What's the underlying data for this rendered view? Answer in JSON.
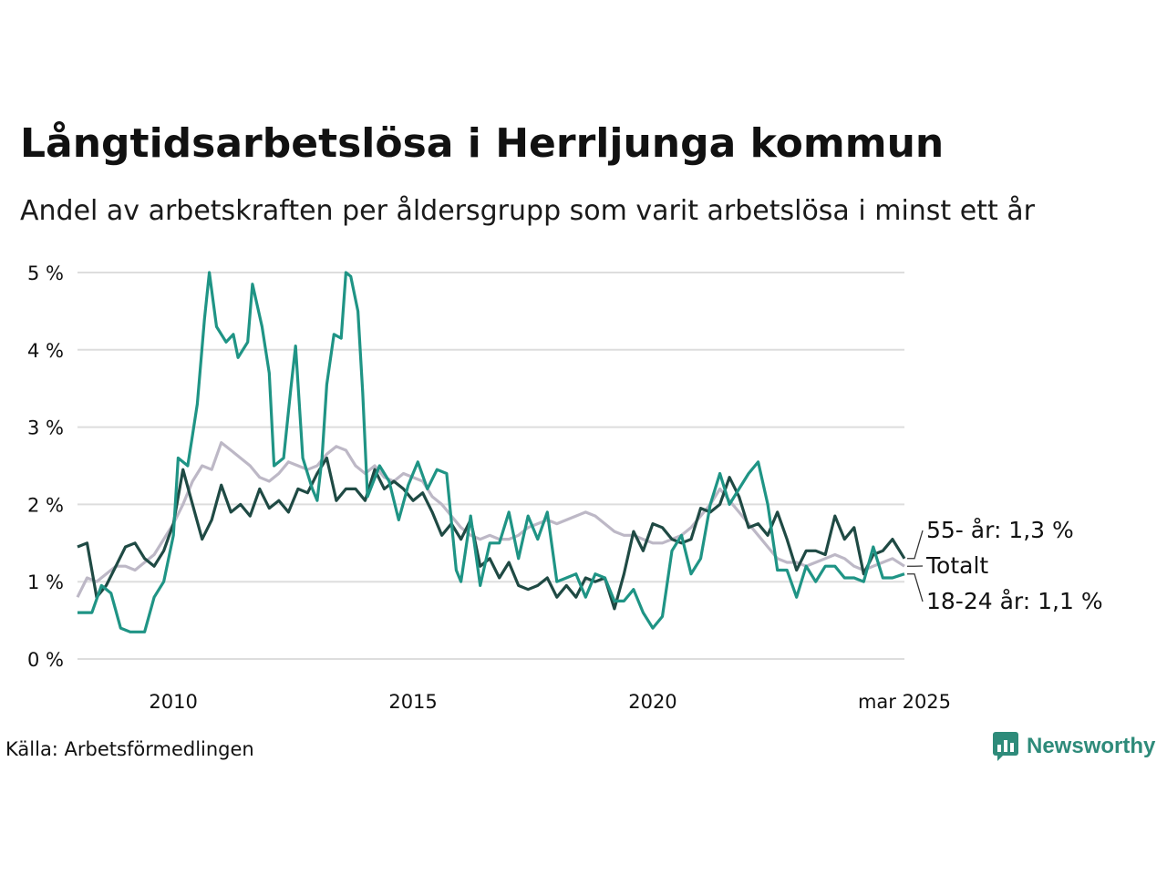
{
  "title": "Långtidsarbetslösa i Herrljunga kommun",
  "subtitle": "Andel av arbetskraften per åldersgrupp som varit arbetslösa i minst ett år",
  "source": "Källa: Arbetsförmedlingen",
  "brand": "Newsworthy",
  "chart_data": {
    "type": "line",
    "x_ticks": [
      "2010",
      "2015",
      "2020",
      "mar 2025"
    ],
    "y_ticks": [
      "0 %",
      "1 %",
      "2 %",
      "3 %",
      "4 %",
      "5 %"
    ],
    "ylim": [
      0,
      5
    ],
    "x_range": [
      2008.0,
      2025.25
    ],
    "grid": true,
    "series": [
      {
        "name": "Totalt",
        "label": "Totalt",
        "color": "#bdb8c6",
        "points": [
          [
            2008.0,
            0.8
          ],
          [
            2008.2,
            1.05
          ],
          [
            2008.4,
            1.0
          ],
          [
            2008.6,
            1.1
          ],
          [
            2008.8,
            1.2
          ],
          [
            2009.0,
            1.2
          ],
          [
            2009.2,
            1.15
          ],
          [
            2009.4,
            1.25
          ],
          [
            2009.6,
            1.35
          ],
          [
            2009.8,
            1.55
          ],
          [
            2010.0,
            1.75
          ],
          [
            2010.2,
            2.0
          ],
          [
            2010.4,
            2.3
          ],
          [
            2010.6,
            2.5
          ],
          [
            2010.8,
            2.45
          ],
          [
            2011.0,
            2.8
          ],
          [
            2011.2,
            2.7
          ],
          [
            2011.4,
            2.6
          ],
          [
            2011.6,
            2.5
          ],
          [
            2011.8,
            2.35
          ],
          [
            2012.0,
            2.3
          ],
          [
            2012.2,
            2.4
          ],
          [
            2012.4,
            2.55
          ],
          [
            2012.6,
            2.5
          ],
          [
            2012.8,
            2.45
          ],
          [
            2013.0,
            2.5
          ],
          [
            2013.2,
            2.65
          ],
          [
            2013.4,
            2.75
          ],
          [
            2013.6,
            2.7
          ],
          [
            2013.8,
            2.5
          ],
          [
            2014.0,
            2.4
          ],
          [
            2014.2,
            2.5
          ],
          [
            2014.4,
            2.35
          ],
          [
            2014.6,
            2.3
          ],
          [
            2014.8,
            2.4
          ],
          [
            2015.0,
            2.35
          ],
          [
            2015.2,
            2.3
          ],
          [
            2015.4,
            2.1
          ],
          [
            2015.6,
            2.0
          ],
          [
            2015.8,
            1.85
          ],
          [
            2016.0,
            1.7
          ],
          [
            2016.2,
            1.6
          ],
          [
            2016.4,
            1.55
          ],
          [
            2016.6,
            1.6
          ],
          [
            2016.8,
            1.55
          ],
          [
            2017.0,
            1.55
          ],
          [
            2017.2,
            1.6
          ],
          [
            2017.4,
            1.7
          ],
          [
            2017.6,
            1.75
          ],
          [
            2017.8,
            1.8
          ],
          [
            2018.0,
            1.75
          ],
          [
            2018.2,
            1.8
          ],
          [
            2018.4,
            1.85
          ],
          [
            2018.6,
            1.9
          ],
          [
            2018.8,
            1.85
          ],
          [
            2019.0,
            1.75
          ],
          [
            2019.2,
            1.65
          ],
          [
            2019.4,
            1.6
          ],
          [
            2019.6,
            1.6
          ],
          [
            2019.8,
            1.55
          ],
          [
            2020.0,
            1.5
          ],
          [
            2020.2,
            1.5
          ],
          [
            2020.4,
            1.55
          ],
          [
            2020.6,
            1.6
          ],
          [
            2020.8,
            1.7
          ],
          [
            2021.0,
            1.85
          ],
          [
            2021.2,
            2.0
          ],
          [
            2021.4,
            2.2
          ],
          [
            2021.6,
            2.05
          ],
          [
            2021.8,
            1.9
          ],
          [
            2022.0,
            1.75
          ],
          [
            2022.2,
            1.6
          ],
          [
            2022.4,
            1.45
          ],
          [
            2022.6,
            1.3
          ],
          [
            2022.8,
            1.25
          ],
          [
            2023.0,
            1.25
          ],
          [
            2023.2,
            1.2
          ],
          [
            2023.4,
            1.25
          ],
          [
            2023.6,
            1.3
          ],
          [
            2023.8,
            1.35
          ],
          [
            2024.0,
            1.3
          ],
          [
            2024.2,
            1.2
          ],
          [
            2024.4,
            1.15
          ],
          [
            2024.6,
            1.2
          ],
          [
            2024.8,
            1.25
          ],
          [
            2025.0,
            1.3
          ],
          [
            2025.25,
            1.2
          ]
        ]
      },
      {
        "name": "55- år",
        "label": "55- år: 1,3 %",
        "color": "#1f4a44",
        "points": [
          [
            2008.0,
            1.45
          ],
          [
            2008.2,
            1.5
          ],
          [
            2008.4,
            0.8
          ],
          [
            2008.6,
            0.95
          ],
          [
            2008.8,
            1.2
          ],
          [
            2009.0,
            1.45
          ],
          [
            2009.2,
            1.5
          ],
          [
            2009.4,
            1.3
          ],
          [
            2009.6,
            1.2
          ],
          [
            2009.8,
            1.4
          ],
          [
            2010.0,
            1.75
          ],
          [
            2010.2,
            2.45
          ],
          [
            2010.4,
            2.0
          ],
          [
            2010.6,
            1.55
          ],
          [
            2010.8,
            1.8
          ],
          [
            2011.0,
            2.25
          ],
          [
            2011.2,
            1.9
          ],
          [
            2011.4,
            2.0
          ],
          [
            2011.6,
            1.85
          ],
          [
            2011.8,
            2.2
          ],
          [
            2012.0,
            1.95
          ],
          [
            2012.2,
            2.05
          ],
          [
            2012.4,
            1.9
          ],
          [
            2012.6,
            2.2
          ],
          [
            2012.8,
            2.15
          ],
          [
            2013.0,
            2.4
          ],
          [
            2013.2,
            2.6
          ],
          [
            2013.4,
            2.05
          ],
          [
            2013.6,
            2.2
          ],
          [
            2013.8,
            2.2
          ],
          [
            2014.0,
            2.05
          ],
          [
            2014.2,
            2.45
          ],
          [
            2014.4,
            2.2
          ],
          [
            2014.6,
            2.3
          ],
          [
            2014.8,
            2.2
          ],
          [
            2015.0,
            2.05
          ],
          [
            2015.2,
            2.15
          ],
          [
            2015.4,
            1.9
          ],
          [
            2015.6,
            1.6
          ],
          [
            2015.8,
            1.75
          ],
          [
            2016.0,
            1.55
          ],
          [
            2016.2,
            1.8
          ],
          [
            2016.4,
            1.2
          ],
          [
            2016.6,
            1.3
          ],
          [
            2016.8,
            1.05
          ],
          [
            2017.0,
            1.25
          ],
          [
            2017.2,
            0.95
          ],
          [
            2017.4,
            0.9
          ],
          [
            2017.6,
            0.95
          ],
          [
            2017.8,
            1.05
          ],
          [
            2018.0,
            0.8
          ],
          [
            2018.2,
            0.95
          ],
          [
            2018.4,
            0.8
          ],
          [
            2018.6,
            1.05
          ],
          [
            2018.8,
            1.0
          ],
          [
            2019.0,
            1.05
          ],
          [
            2019.2,
            0.65
          ],
          [
            2019.4,
            1.1
          ],
          [
            2019.6,
            1.65
          ],
          [
            2019.8,
            1.4
          ],
          [
            2020.0,
            1.75
          ],
          [
            2020.2,
            1.7
          ],
          [
            2020.4,
            1.55
          ],
          [
            2020.6,
            1.5
          ],
          [
            2020.8,
            1.55
          ],
          [
            2021.0,
            1.95
          ],
          [
            2021.2,
            1.9
          ],
          [
            2021.4,
            2.0
          ],
          [
            2021.6,
            2.35
          ],
          [
            2021.8,
            2.1
          ],
          [
            2022.0,
            1.7
          ],
          [
            2022.2,
            1.75
          ],
          [
            2022.4,
            1.6
          ],
          [
            2022.6,
            1.9
          ],
          [
            2022.8,
            1.55
          ],
          [
            2023.0,
            1.15
          ],
          [
            2023.2,
            1.4
          ],
          [
            2023.4,
            1.4
          ],
          [
            2023.6,
            1.35
          ],
          [
            2023.8,
            1.85
          ],
          [
            2024.0,
            1.55
          ],
          [
            2024.2,
            1.7
          ],
          [
            2024.4,
            1.1
          ],
          [
            2024.6,
            1.35
          ],
          [
            2024.8,
            1.4
          ],
          [
            2025.0,
            1.55
          ],
          [
            2025.25,
            1.3
          ]
        ]
      },
      {
        "name": "18-24 år",
        "label": "18-24 år: 1,1 %",
        "color": "#1f9485",
        "points": [
          [
            2008.0,
            0.6
          ],
          [
            2008.3,
            0.6
          ],
          [
            2008.5,
            0.95
          ],
          [
            2008.7,
            0.85
          ],
          [
            2008.9,
            0.4
          ],
          [
            2009.1,
            0.35
          ],
          [
            2009.4,
            0.35
          ],
          [
            2009.6,
            0.8
          ],
          [
            2009.8,
            1.0
          ],
          [
            2010.0,
            1.6
          ],
          [
            2010.1,
            2.6
          ],
          [
            2010.3,
            2.5
          ],
          [
            2010.4,
            2.9
          ],
          [
            2010.5,
            3.3
          ],
          [
            2010.65,
            4.4
          ],
          [
            2010.75,
            5.0
          ],
          [
            2010.9,
            4.3
          ],
          [
            2011.1,
            4.1
          ],
          [
            2011.25,
            4.2
          ],
          [
            2011.35,
            3.9
          ],
          [
            2011.55,
            4.1
          ],
          [
            2011.65,
            4.85
          ],
          [
            2011.85,
            4.3
          ],
          [
            2012.0,
            3.7
          ],
          [
            2012.1,
            2.5
          ],
          [
            2012.3,
            2.6
          ],
          [
            2012.45,
            3.5
          ],
          [
            2012.55,
            4.05
          ],
          [
            2012.7,
            2.6
          ],
          [
            2012.9,
            2.2
          ],
          [
            2013.0,
            2.05
          ],
          [
            2013.1,
            2.6
          ],
          [
            2013.2,
            3.55
          ],
          [
            2013.35,
            4.2
          ],
          [
            2013.5,
            4.15
          ],
          [
            2013.6,
            5.0
          ],
          [
            2013.7,
            4.95
          ],
          [
            2013.85,
            4.5
          ],
          [
            2013.95,
            3.45
          ],
          [
            2014.05,
            2.1
          ],
          [
            2014.3,
            2.5
          ],
          [
            2014.5,
            2.3
          ],
          [
            2014.7,
            1.8
          ],
          [
            2014.9,
            2.25
          ],
          [
            2015.1,
            2.55
          ],
          [
            2015.3,
            2.2
          ],
          [
            2015.5,
            2.45
          ],
          [
            2015.7,
            2.4
          ],
          [
            2015.9,
            1.15
          ],
          [
            2016.0,
            1.0
          ],
          [
            2016.2,
            1.85
          ],
          [
            2016.4,
            0.95
          ],
          [
            2016.6,
            1.5
          ],
          [
            2016.8,
            1.5
          ],
          [
            2017.0,
            1.9
          ],
          [
            2017.2,
            1.3
          ],
          [
            2017.4,
            1.85
          ],
          [
            2017.6,
            1.55
          ],
          [
            2017.8,
            1.9
          ],
          [
            2018.0,
            1.0
          ],
          [
            2018.2,
            1.05
          ],
          [
            2018.4,
            1.1
          ],
          [
            2018.6,
            0.8
          ],
          [
            2018.8,
            1.1
          ],
          [
            2019.0,
            1.05
          ],
          [
            2019.2,
            0.75
          ],
          [
            2019.4,
            0.75
          ],
          [
            2019.6,
            0.9
          ],
          [
            2019.8,
            0.6
          ],
          [
            2020.0,
            0.4
          ],
          [
            2020.2,
            0.55
          ],
          [
            2020.4,
            1.4
          ],
          [
            2020.6,
            1.6
          ],
          [
            2020.8,
            1.1
          ],
          [
            2021.0,
            1.3
          ],
          [
            2021.2,
            2.0
          ],
          [
            2021.4,
            2.4
          ],
          [
            2021.6,
            2.0
          ],
          [
            2021.8,
            2.2
          ],
          [
            2022.0,
            2.4
          ],
          [
            2022.2,
            2.55
          ],
          [
            2022.4,
            2.0
          ],
          [
            2022.6,
            1.15
          ],
          [
            2022.8,
            1.15
          ],
          [
            2023.0,
            0.8
          ],
          [
            2023.2,
            1.2
          ],
          [
            2023.4,
            1.0
          ],
          [
            2023.6,
            1.2
          ],
          [
            2023.8,
            1.2
          ],
          [
            2024.0,
            1.05
          ],
          [
            2024.2,
            1.05
          ],
          [
            2024.4,
            1.0
          ],
          [
            2024.6,
            1.45
          ],
          [
            2024.8,
            1.05
          ],
          [
            2025.0,
            1.05
          ],
          [
            2025.25,
            1.1
          ]
        ]
      }
    ]
  }
}
